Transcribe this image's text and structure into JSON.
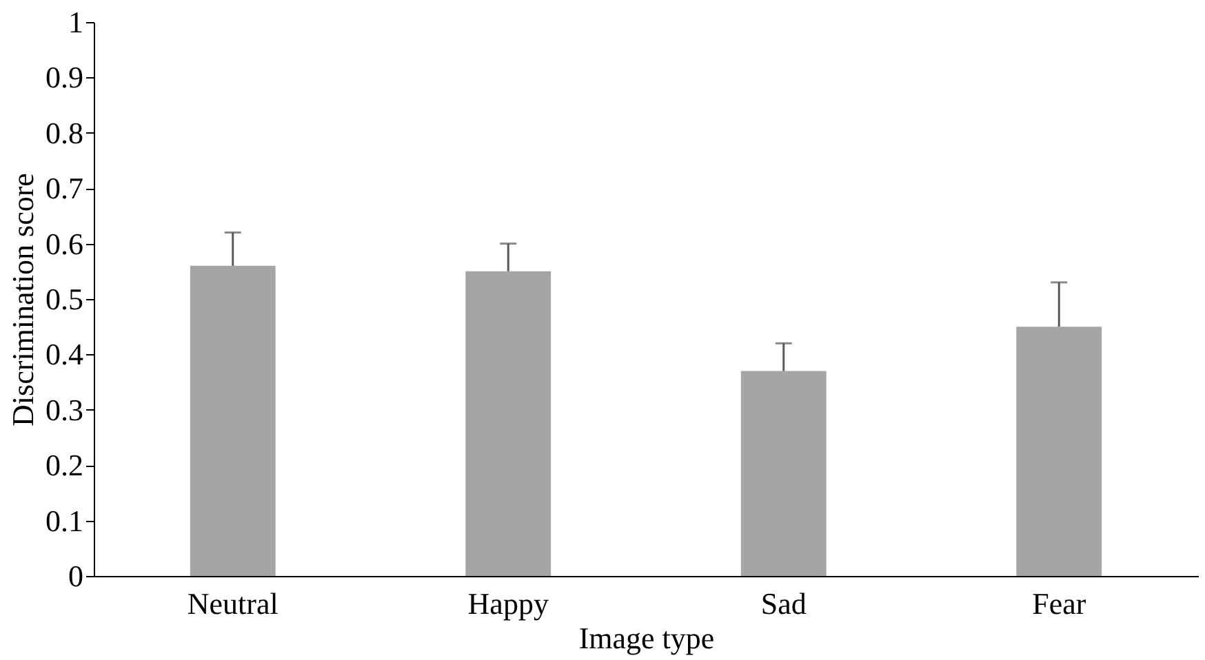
{
  "chart_data": {
    "type": "bar",
    "xlabel": "Image type",
    "ylabel": "Discrimination score",
    "categories": [
      "Neutral",
      "Happy",
      "Sad",
      "Fear"
    ],
    "values": [
      0.56,
      0.55,
      0.37,
      0.45
    ],
    "errors": [
      [
        0.56,
        0.62
      ],
      [
        0.55,
        0.6
      ],
      [
        0.37,
        0.42
      ],
      [
        0.45,
        0.53
      ]
    ],
    "color": "#a5a5a5",
    "ylim": [
      0,
      1
    ],
    "yticks": [
      0,
      0.1,
      0.2,
      0.3,
      0.4,
      0.5,
      0.6,
      0.7,
      0.8,
      0.9,
      1
    ],
    "grid": false
  }
}
